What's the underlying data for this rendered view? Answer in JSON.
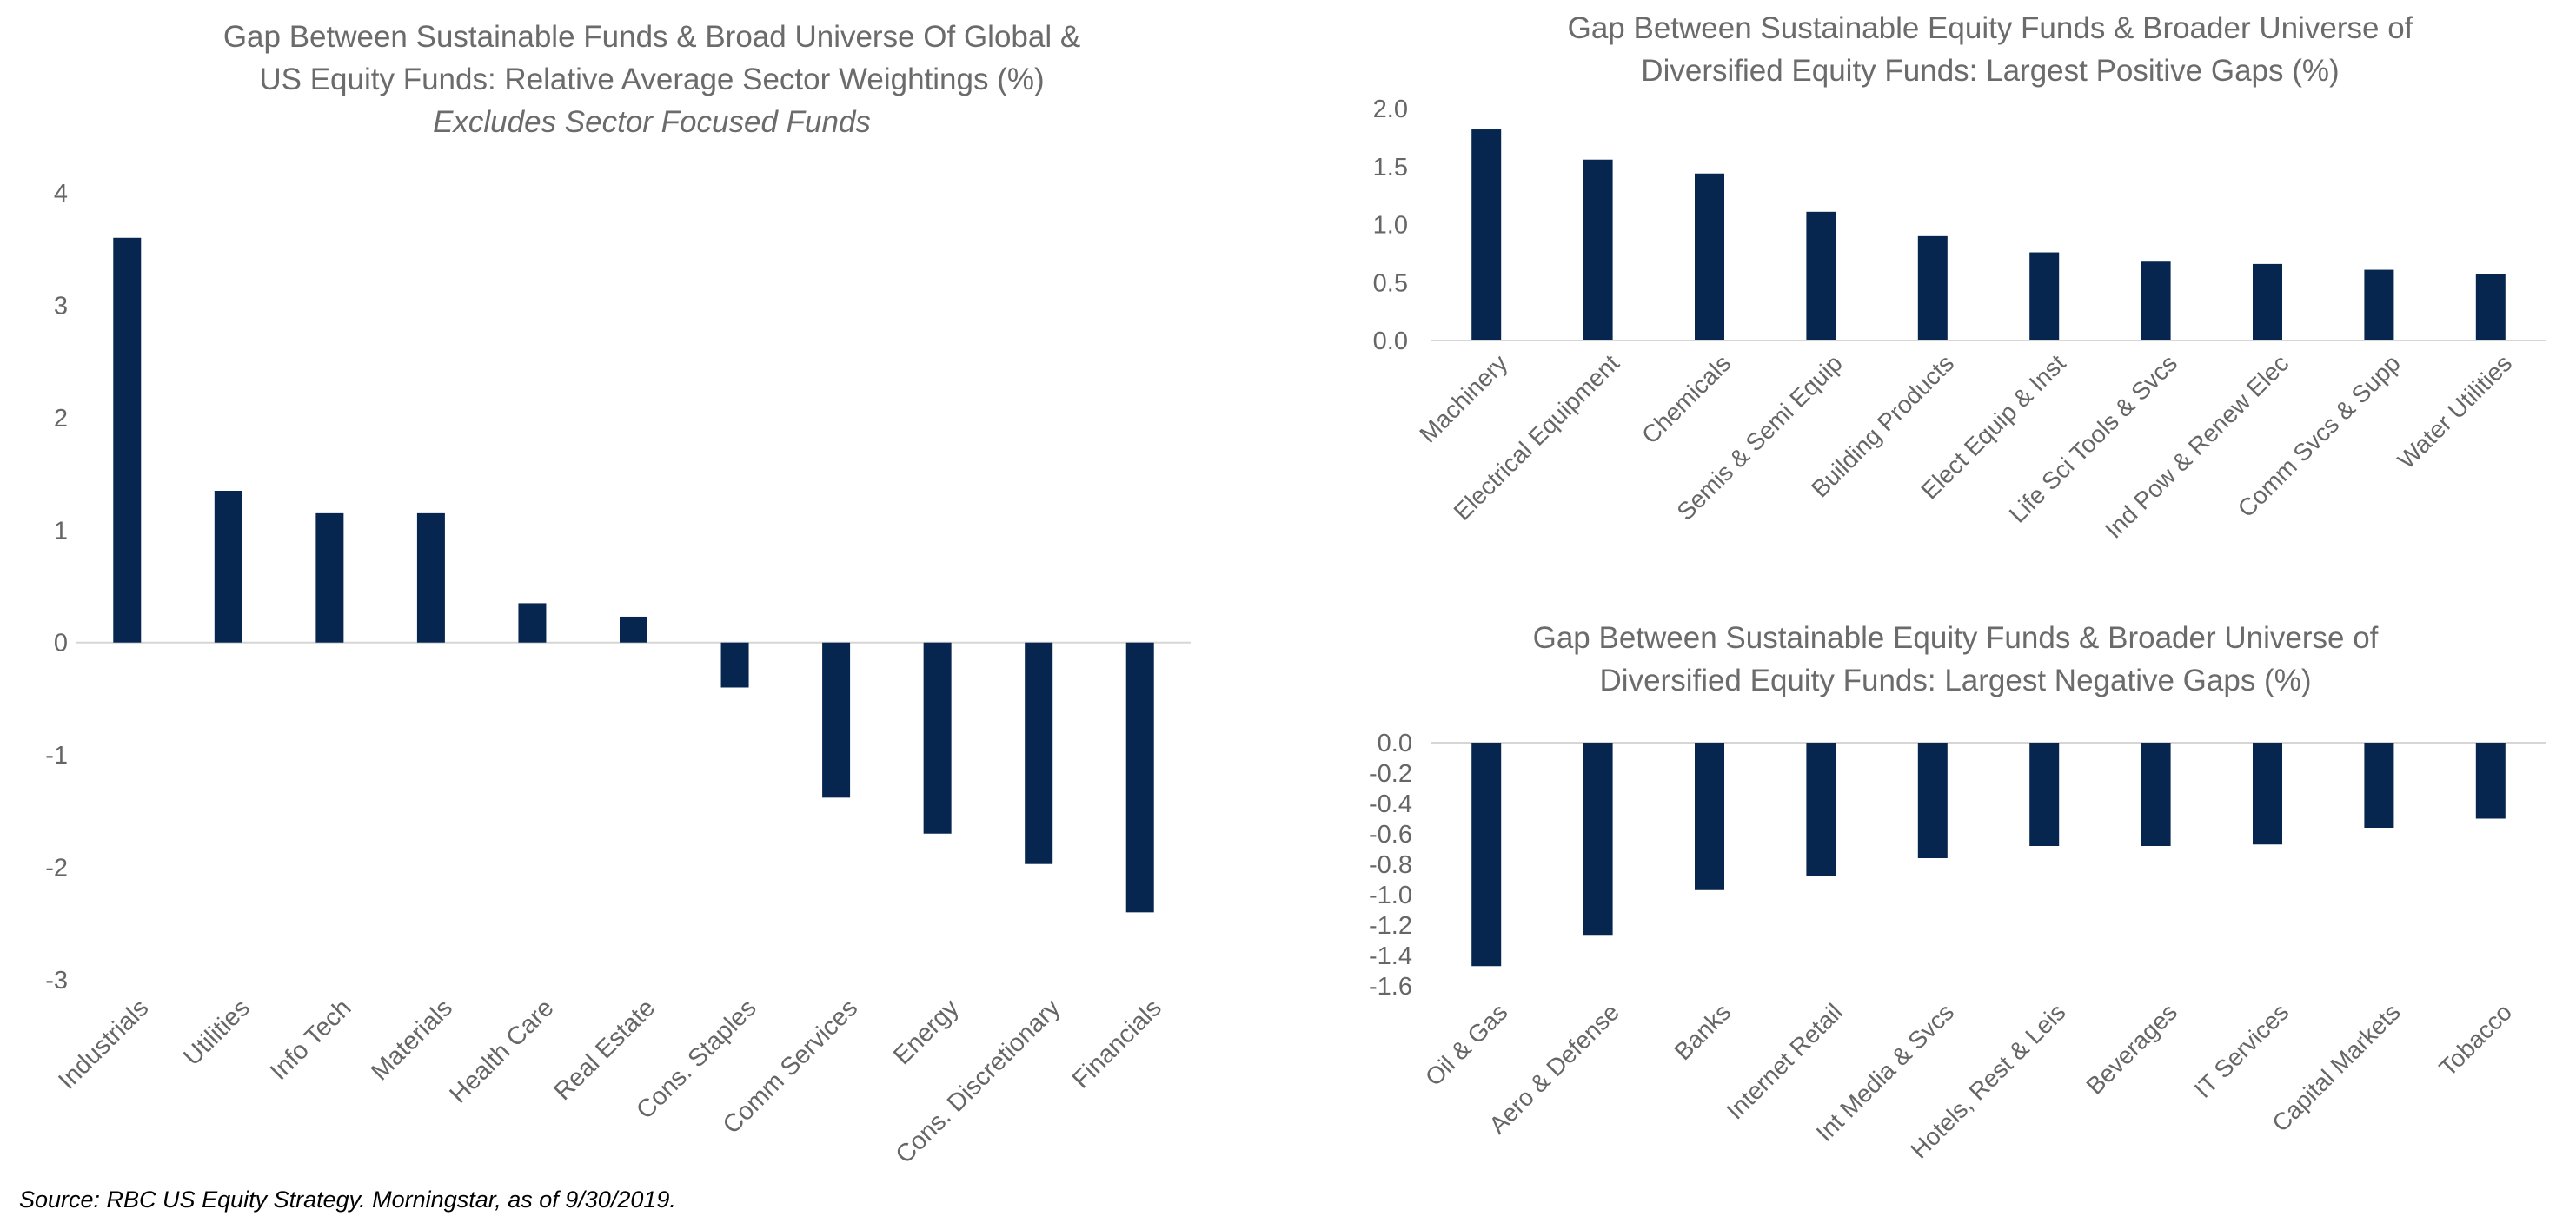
{
  "colors": {
    "bar": "#062650",
    "axis": "#d6d6d6",
    "text": "#666666"
  },
  "source": "Source: RBC US Equity Strategy. Morningstar, as of 9/30/2019.",
  "chart_data": [
    {
      "type": "bar",
      "title": "Gap Between  Sustainable Funds & Broad Universe Of Global & US Equity Funds: Relative Average Sector Weightings (%)",
      "title_lines": [
        "Gap Between  Sustainable Funds & Broad Universe Of Global &",
        "US Equity Funds: Relative Average Sector Weightings (%)"
      ],
      "subtitle": "Excludes Sector Focused Funds",
      "categories": [
        "Industrials",
        "Utilities",
        "Info Tech",
        "Materials",
        "Health Care",
        "Real Estate",
        "Cons. Staples",
        "Comm Services",
        "Energy",
        "Cons. Discretionary",
        "Financials"
      ],
      "values": [
        3.6,
        1.35,
        1.15,
        1.15,
        0.35,
        0.23,
        -0.4,
        -1.38,
        -1.7,
        -1.97,
        -2.4
      ],
      "ylim": [
        -3,
        4
      ],
      "yticks": [
        4,
        3,
        2,
        1,
        0,
        -1,
        -2,
        -3
      ],
      "ytick_labels": [
        "4",
        "3",
        "2",
        "1",
        "0",
        "-1",
        "-2",
        "-3"
      ],
      "grid": false,
      "legend": "none"
    },
    {
      "type": "bar",
      "title": "Gap Between  Sustainable Equity Funds & Broader Universe of Diversified Equity Funds: Largest Positive Gaps (%)",
      "title_lines": [
        "Gap Between  Sustainable Equity Funds & Broader Universe of",
        "Diversified Equity Funds: Largest Positive Gaps (%)"
      ],
      "categories": [
        "Machinery",
        "Electrical Equipment",
        "Chemicals",
        "Semis & Semi Equip",
        "Building Products",
        "Elect Equip & Inst",
        "Life Sci Tools & Svcs",
        "Ind Pow & Renew Elec",
        "Comm Svcs & Supp",
        "Water Utilities"
      ],
      "values": [
        1.82,
        1.56,
        1.44,
        1.11,
        0.9,
        0.76,
        0.68,
        0.66,
        0.61,
        0.57
      ],
      "ylim": [
        0,
        2
      ],
      "yticks": [
        2,
        1.5,
        1,
        0.5,
        0
      ],
      "ytick_labels": [
        "2.0",
        "1.5",
        "1.0",
        "0.5",
        "0.0"
      ],
      "grid": false,
      "legend": "none"
    },
    {
      "type": "bar",
      "title": "Gap Between  Sustainable Equity Funds & Broader Universe of Diversified Equity Funds: Largest Negative Gaps (%)",
      "title_lines": [
        "Gap Between  Sustainable Equity Funds & Broader Universe of",
        "Diversified Equity Funds: Largest Negative Gaps (%)"
      ],
      "categories": [
        "Oil & Gas",
        "Aero & Defense",
        "Banks",
        "Internet Retail",
        "Int Media & Svcs",
        "Hotels, Rest & Leis",
        "Beverages",
        "IT Services",
        "Capital Markets",
        "Tobacco"
      ],
      "values": [
        -1.47,
        -1.27,
        -0.97,
        -0.88,
        -0.76,
        -0.68,
        -0.68,
        -0.67,
        -0.56,
        -0.5
      ],
      "ylim": [
        -1.6,
        0
      ],
      "yticks": [
        0,
        -0.2,
        -0.4,
        -0.6,
        -0.8,
        -1,
        -1.2,
        -1.4,
        -1.6
      ],
      "ytick_labels": [
        "0.0",
        "-0.2",
        "-0.4",
        "-0.6",
        "-0.8",
        "-1.0",
        "-1.2",
        "-1.4",
        "-1.6"
      ],
      "grid": false,
      "legend": "none"
    }
  ]
}
